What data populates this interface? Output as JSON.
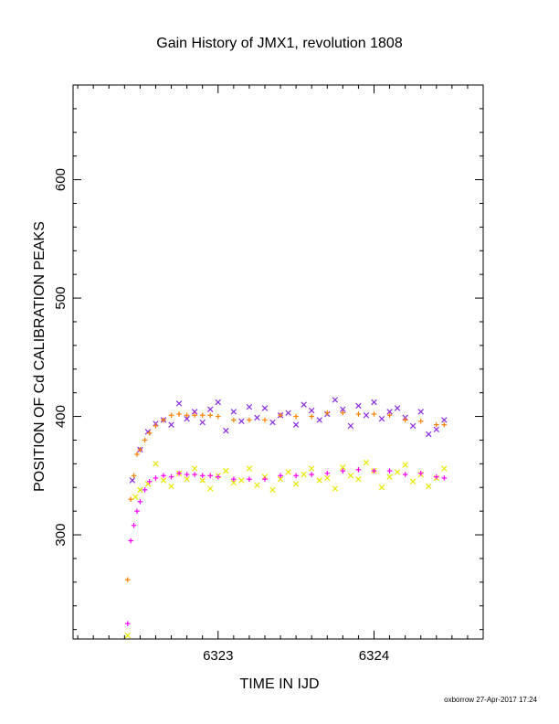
{
  "chart_data": {
    "type": "scatter",
    "title": "Gain History of JMX1, revolution 1808",
    "xlabel": "TIME IN IJD",
    "ylabel": "POSITION OF Cd CALIBRATION PEAKS",
    "xlim": [
      6322.07,
      6324.7
    ],
    "ylim": [
      212,
      680
    ],
    "x_ticks": [
      6323,
      6324
    ],
    "y_ticks": [
      300,
      400,
      500,
      600
    ],
    "grid": false,
    "series": [
      {
        "color": "#8a2be2",
        "marker": "x",
        "x": [
          6322.45,
          6322.5,
          6322.55,
          6322.6,
          6322.65,
          6322.7,
          6322.75,
          6322.8,
          6322.85,
          6322.9,
          6322.95,
          6323.0,
          6323.05,
          6323.1,
          6323.15,
          6323.2,
          6323.25,
          6323.3,
          6323.35,
          6323.4,
          6323.45,
          6323.5,
          6323.55,
          6323.6,
          6323.65,
          6323.7,
          6323.75,
          6323.8,
          6323.85,
          6323.9,
          6323.95,
          6324.0,
          6324.05,
          6324.1,
          6324.15,
          6324.2,
          6324.25,
          6324.3,
          6324.35,
          6324.4,
          6324.45
        ],
        "y": [
          346,
          372,
          387,
          394,
          397,
          393,
          411,
          398,
          404,
          395,
          406,
          412,
          388,
          404,
          396,
          408,
          399,
          407,
          395,
          401,
          403,
          393,
          410,
          405,
          397,
          402,
          414,
          406,
          392,
          409,
          401,
          412,
          398,
          404,
          407,
          399,
          392,
          404,
          385,
          389,
          397
        ]
      },
      {
        "color": "#ff7f00",
        "marker": "+",
        "x": [
          6322.42,
          6322.44,
          6322.46,
          6322.48,
          6322.5,
          6322.53,
          6322.56,
          6322.6,
          6322.65,
          6322.7,
          6322.75,
          6322.8,
          6322.85,
          6322.9,
          6322.95,
          6323.0,
          6323.1,
          6323.2,
          6323.3,
          6323.4,
          6323.5,
          6323.6,
          6323.7,
          6323.8,
          6323.9,
          6324.0,
          6324.1,
          6324.2,
          6324.3,
          6324.4,
          6324.45
        ],
        "y": [
          262,
          330,
          350,
          368,
          372,
          380,
          386,
          392,
          397,
          401,
          402,
          401,
          401,
          401,
          401,
          400,
          397,
          397,
          397,
          401,
          400,
          400,
          403,
          403,
          402,
          402,
          401,
          397,
          396,
          393,
          393
        ]
      },
      {
        "color": "#e8e800",
        "marker": "x",
        "x": [
          6322.42,
          6322.47,
          6322.5,
          6322.55,
          6322.6,
          6322.65,
          6322.7,
          6322.75,
          6322.8,
          6322.85,
          6322.9,
          6322.95,
          6323.0,
          6323.05,
          6323.1,
          6323.15,
          6323.2,
          6323.25,
          6323.3,
          6323.35,
          6323.4,
          6323.45,
          6323.5,
          6323.55,
          6323.6,
          6323.65,
          6323.7,
          6323.75,
          6323.8,
          6323.85,
          6323.9,
          6323.95,
          6324.0,
          6324.05,
          6324.1,
          6324.15,
          6324.2,
          6324.25,
          6324.3,
          6324.35,
          6324.4,
          6324.45
        ],
        "y": [
          215,
          332,
          338,
          343,
          360,
          346,
          341,
          352,
          347,
          356,
          346,
          339,
          350,
          354,
          344,
          346,
          356,
          342,
          349,
          338,
          347,
          353,
          343,
          351,
          356,
          346,
          348,
          339,
          357,
          350,
          347,
          361,
          354,
          340,
          349,
          353,
          359,
          345,
          351,
          341,
          348,
          356
        ]
      },
      {
        "color": "#ff00ff",
        "marker": "+",
        "x": [
          6322.42,
          6322.44,
          6322.46,
          6322.48,
          6322.5,
          6322.53,
          6322.56,
          6322.6,
          6322.65,
          6322.7,
          6322.75,
          6322.8,
          6322.85,
          6322.9,
          6322.95,
          6323.0,
          6323.1,
          6323.2,
          6323.3,
          6323.4,
          6323.5,
          6323.6,
          6323.7,
          6323.8,
          6323.9,
          6324.0,
          6324.1,
          6324.2,
          6324.3,
          6324.4,
          6324.45
        ],
        "y": [
          225,
          295,
          308,
          320,
          328,
          338,
          345,
          348,
          350,
          349,
          352,
          351,
          351,
          350,
          350,
          349,
          347,
          347,
          347,
          350,
          350,
          351,
          352,
          354,
          355,
          354,
          354,
          351,
          352,
          349,
          348
        ]
      }
    ]
  },
  "footer": "oxborrow 27-Apr-2017 17:24"
}
